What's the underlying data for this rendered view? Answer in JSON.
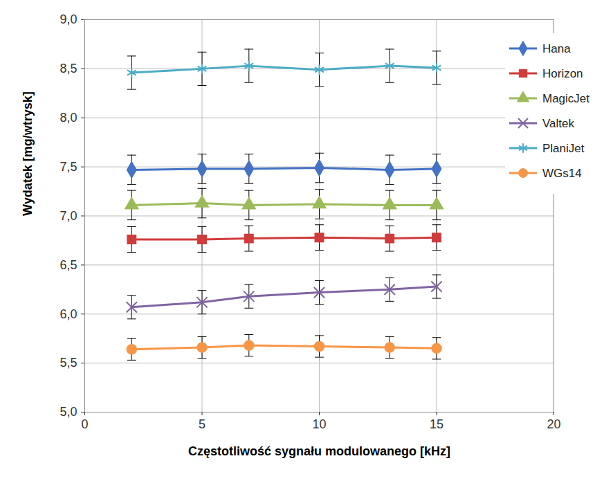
{
  "chart_data": {
    "type": "line",
    "x_label": "Częstotliwość sygnału modulowanego [kHz]",
    "y_label": "Wydatek [mg/wtrysk]",
    "x": [
      2,
      5,
      7,
      10,
      13,
      15
    ],
    "series": [
      {
        "name": "Hana",
        "color": "#4472c4",
        "marker": "diamond",
        "values": [
          7.47,
          7.48,
          7.48,
          7.49,
          7.47,
          7.48
        ],
        "errors": [
          0.15,
          0.15,
          0.15,
          0.15,
          0.15,
          0.15
        ]
      },
      {
        "name": "Horizon",
        "color": "#d03b3b",
        "marker": "square",
        "values": [
          6.76,
          6.76,
          6.77,
          6.78,
          6.77,
          6.78
        ],
        "errors": [
          0.13,
          0.13,
          0.13,
          0.13,
          0.13,
          0.13
        ]
      },
      {
        "name": "MagicJet",
        "color": "#9bbb59",
        "marker": "triangle",
        "values": [
          7.11,
          7.13,
          7.11,
          7.12,
          7.11,
          7.11
        ],
        "errors": [
          0.15,
          0.15,
          0.15,
          0.15,
          0.15,
          0.15
        ]
      },
      {
        "name": "Valtek",
        "color": "#8064a2",
        "marker": "x",
        "values": [
          6.07,
          6.12,
          6.18,
          6.22,
          6.25,
          6.28
        ],
        "errors": [
          0.12,
          0.12,
          0.12,
          0.12,
          0.12,
          0.12
        ]
      },
      {
        "name": "PlaniJet",
        "color": "#4bacc6",
        "marker": "asterisk",
        "values": [
          8.46,
          8.5,
          8.53,
          8.49,
          8.53,
          8.51
        ],
        "errors": [
          0.17,
          0.17,
          0.17,
          0.17,
          0.17,
          0.17
        ]
      },
      {
        "name": "WGs14",
        "color": "#f79646",
        "marker": "circle",
        "values": [
          5.64,
          5.66,
          5.68,
          5.67,
          5.66,
          5.65
        ],
        "errors": [
          0.11,
          0.11,
          0.11,
          0.11,
          0.11,
          0.11
        ]
      }
    ],
    "xlim": [
      0,
      20
    ],
    "xticks": [
      0,
      5,
      10,
      15,
      20
    ],
    "ylim": [
      5,
      9
    ],
    "yticks": [
      {
        "value": 5,
        "label": "5,0"
      },
      {
        "value": 5.5,
        "label": "5,5"
      },
      {
        "value": 6,
        "label": "6,0"
      },
      {
        "value": 6.5,
        "label": "6,5"
      },
      {
        "value": 7,
        "label": "7,0"
      },
      {
        "value": 7.5,
        "label": "7,5"
      },
      {
        "value": 8,
        "label": "8,0"
      },
      {
        "value": 8.5,
        "label": "8,5"
      },
      {
        "value": 9,
        "label": "9,0"
      }
    ],
    "grid": true,
    "legend": "top right"
  }
}
